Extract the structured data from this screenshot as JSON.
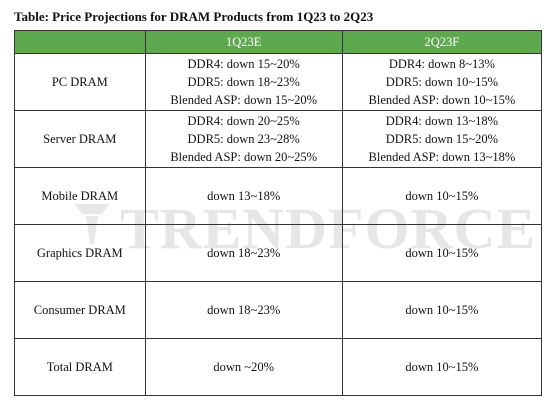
{
  "title": "Table: Price Projections for DRAM Products from 1Q23 to 2Q23",
  "watermark": "TRENDFORCE",
  "colors": {
    "header_bg": "#5ea84f",
    "header_text": "#ffffff",
    "border": "#333333"
  },
  "columns": [
    "",
    "1Q23E",
    "2Q23F"
  ],
  "rows": [
    {
      "label": "PC DRAM",
      "q1": [
        "DDR4: down 15~20%",
        "DDR5: down 18~23%",
        "Blended ASP: down 15~20%"
      ],
      "q2": [
        "DDR4: down 8~13%",
        "DDR5: down 10~15%",
        "Blended ASP: down 10~15%"
      ]
    },
    {
      "label": "Server DRAM",
      "q1": [
        "DDR4: down 20~25%",
        "DDR5: down 23~28%",
        "Blended ASP: down 20~25%"
      ],
      "q2": [
        "DDR4: down 13~18%",
        "DDR5: down 15~20%",
        "Blended ASP: down 13~18%"
      ]
    },
    {
      "label": "Mobile DRAM",
      "q1": [
        "down 13~18%"
      ],
      "q2": [
        "down 10~15%"
      ]
    },
    {
      "label": "Graphics DRAM",
      "q1": [
        "down 18~23%"
      ],
      "q2": [
        "down 10~15%"
      ]
    },
    {
      "label": "Consumer DRAM",
      "q1": [
        "down 18~23%"
      ],
      "q2": [
        "down 10~15%"
      ]
    },
    {
      "label": "Total DRAM",
      "q1": [
        "down ~20%"
      ],
      "q2": [
        "down 10~15%"
      ]
    }
  ]
}
